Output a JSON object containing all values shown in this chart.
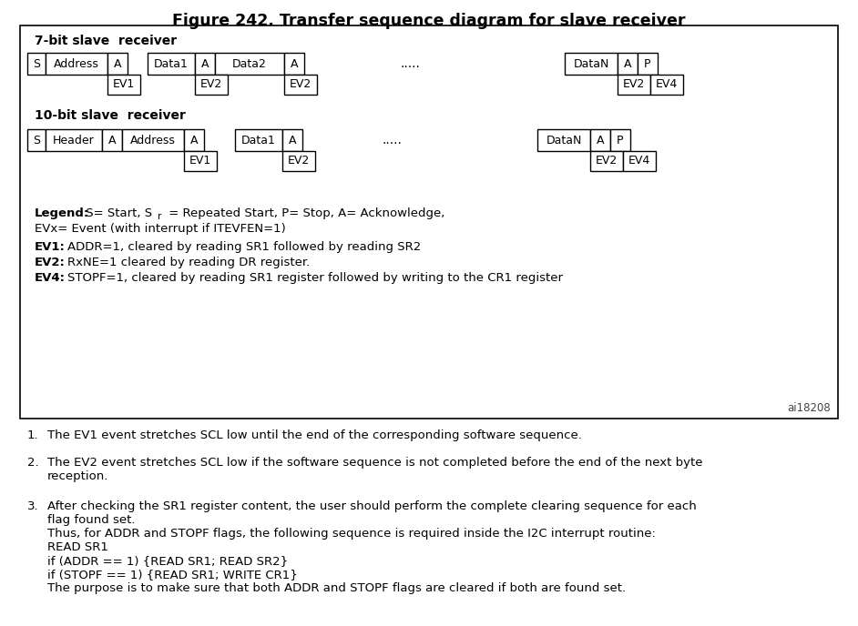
{
  "title": "Figure 242. Transfer sequence diagram for slave receiver",
  "title_fontsize": 12.5,
  "title_fontweight": "bold",
  "bg_color": "#ffffff",
  "seven_bit_label": "7-bit slave  receiver",
  "ten_bit_label": "10-bit slave  receiver",
  "watermark": "ai18208",
  "ev1_desc": "ADDR=1, cleared by reading SR1 followed by reading SR2",
  "ev2_desc": "RxNE=1 cleared by reading DR register.",
  "ev4_desc": "STOPF=1, cleared by reading SR1 register followed by writing to the CR1 register",
  "note1": "The EV1 event stretches SCL low until the end of the corresponding software sequence.",
  "note2": "The EV2 event stretches SCL low if the software sequence is not completed before the end of the next byte\nreception.",
  "note3": "After checking the SR1 register content, the user should perform the complete clearing sequence for each\nflag found set.\nThus, for ADDR and STOPF flags, the following sequence is required inside the I2C interrupt routine:\nREAD SR1\nif (ADDR == 1) {READ SR1; READ SR2}\nif (STOPF == 1) {READ SR1; WRITE CR1}\nThe purpose is to make sure that both ADDR and STOPF flags are cleared if both are found set.",
  "legend_line1_a": "Legend:",
  "legend_line1_b": " S= Start, S",
  "legend_line1_sub": "r",
  "legend_line1_c": " = Repeated Start, P= Stop, A= Acknowledge,",
  "legend_line2": "EVx= Event (with interrupt if ITEVFEN=1)"
}
